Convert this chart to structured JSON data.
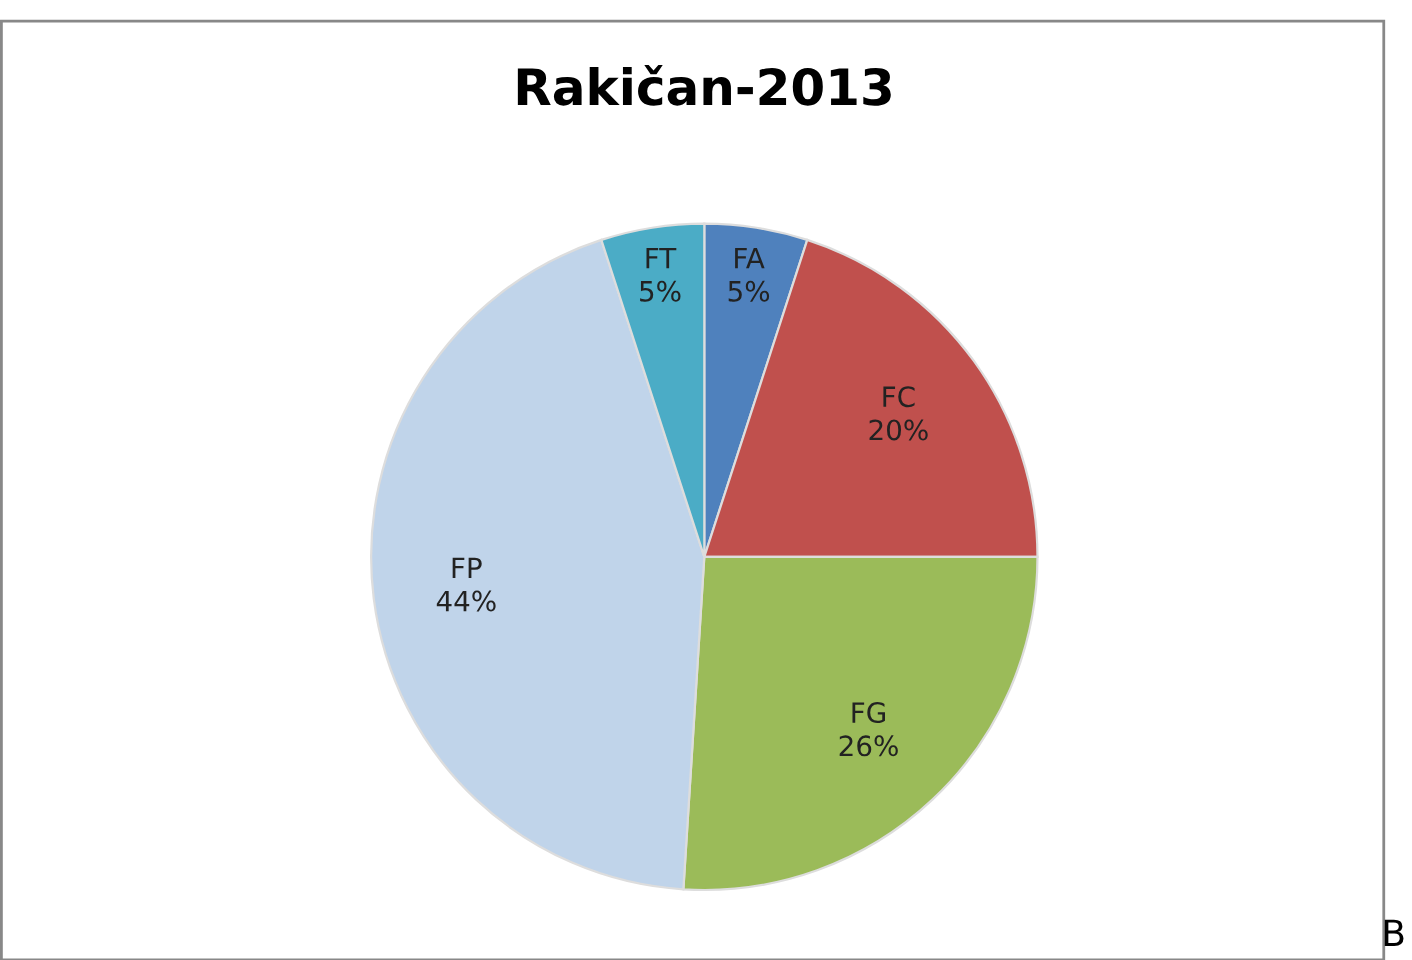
{
  "chart_data": {
    "type": "pie",
    "title": "Rakičan-2013",
    "categories": [
      "FA",
      "FC",
      "FG",
      "FP",
      "FT"
    ],
    "values": [
      5,
      20,
      26,
      44,
      5
    ],
    "value_labels": [
      "5%",
      "20%",
      "26%",
      "44%",
      "5%"
    ],
    "colors": [
      "#4f81bd",
      "#c0504d",
      "#9bbb59",
      "#c0d4ea",
      "#4bacc6"
    ],
    "legend": false,
    "annotations": [
      "B"
    ]
  }
}
